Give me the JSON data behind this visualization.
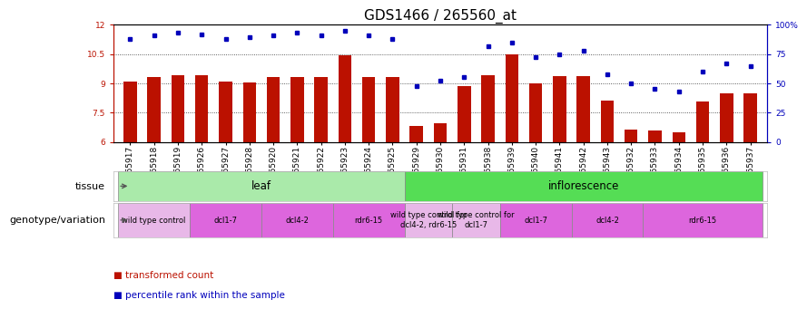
{
  "title": "GDS1466 / 265560_at",
  "samples": [
    "GSM65917",
    "GSM65918",
    "GSM65919",
    "GSM65926",
    "GSM65927",
    "GSM65928",
    "GSM65920",
    "GSM65921",
    "GSM65922",
    "GSM65923",
    "GSM65924",
    "GSM65925",
    "GSM65929",
    "GSM65930",
    "GSM65931",
    "GSM65938",
    "GSM65939",
    "GSM65940",
    "GSM65941",
    "GSM65942",
    "GSM65943",
    "GSM65932",
    "GSM65933",
    "GSM65934",
    "GSM65935",
    "GSM65936",
    "GSM65937"
  ],
  "bar_values": [
    9.1,
    9.3,
    9.4,
    9.4,
    9.1,
    9.05,
    9.3,
    9.3,
    9.3,
    10.45,
    9.3,
    9.3,
    6.8,
    6.95,
    8.85,
    9.4,
    10.5,
    9.0,
    9.35,
    9.35,
    8.1,
    6.65,
    6.6,
    6.5,
    8.05,
    8.5,
    8.5
  ],
  "percentile_values": [
    88,
    91,
    93,
    92,
    88,
    89,
    91,
    93,
    91,
    95,
    91,
    88,
    48,
    52,
    55,
    82,
    85,
    72,
    75,
    78,
    58,
    50,
    45,
    43,
    60,
    67,
    65
  ],
  "ylim_left": [
    6,
    12
  ],
  "ylim_right": [
    0,
    100
  ],
  "yticks_left": [
    6,
    7.5,
    9,
    10.5,
    12
  ],
  "yticks_right": [
    0,
    25,
    50,
    75,
    100
  ],
  "ytick_labels_left": [
    "6",
    "7.5",
    "9",
    "10.5",
    "12"
  ],
  "ytick_labels_right": [
    "0",
    "25",
    "50",
    "75",
    "100%"
  ],
  "bar_color": "#bb1100",
  "dot_color": "#0000bb",
  "tissue_row": [
    {
      "label": "leaf",
      "start": 0,
      "end": 11,
      "color": "#aaeaaa"
    },
    {
      "label": "inflorescence",
      "start": 12,
      "end": 26,
      "color": "#55dd55"
    }
  ],
  "genotype_row": [
    {
      "label": "wild type control",
      "start": 0,
      "end": 2,
      "color": "#e8b8e8"
    },
    {
      "label": "dcl1-7",
      "start": 3,
      "end": 5,
      "color": "#dd66dd"
    },
    {
      "label": "dcl4-2",
      "start": 6,
      "end": 8,
      "color": "#dd66dd"
    },
    {
      "label": "rdr6-15",
      "start": 9,
      "end": 11,
      "color": "#dd66dd"
    },
    {
      "label": "wild type control for\ndcl4-2, rdr6-15",
      "start": 12,
      "end": 13,
      "color": "#e8b8e8"
    },
    {
      "label": "wild type control for\ndcl1-7",
      "start": 14,
      "end": 15,
      "color": "#e8b8e8"
    },
    {
      "label": "dcl1-7",
      "start": 16,
      "end": 18,
      "color": "#dd66dd"
    },
    {
      "label": "dcl4-2",
      "start": 19,
      "end": 21,
      "color": "#dd66dd"
    },
    {
      "label": "rdr6-15",
      "start": 22,
      "end": 26,
      "color": "#dd66dd"
    }
  ],
  "bg_color": "#ffffff",
  "label_tissue": "tissue",
  "label_genotype": "genotype/variation",
  "title_fontsize": 11,
  "tick_fontsize": 6.5,
  "row_label_fontsize": 8
}
